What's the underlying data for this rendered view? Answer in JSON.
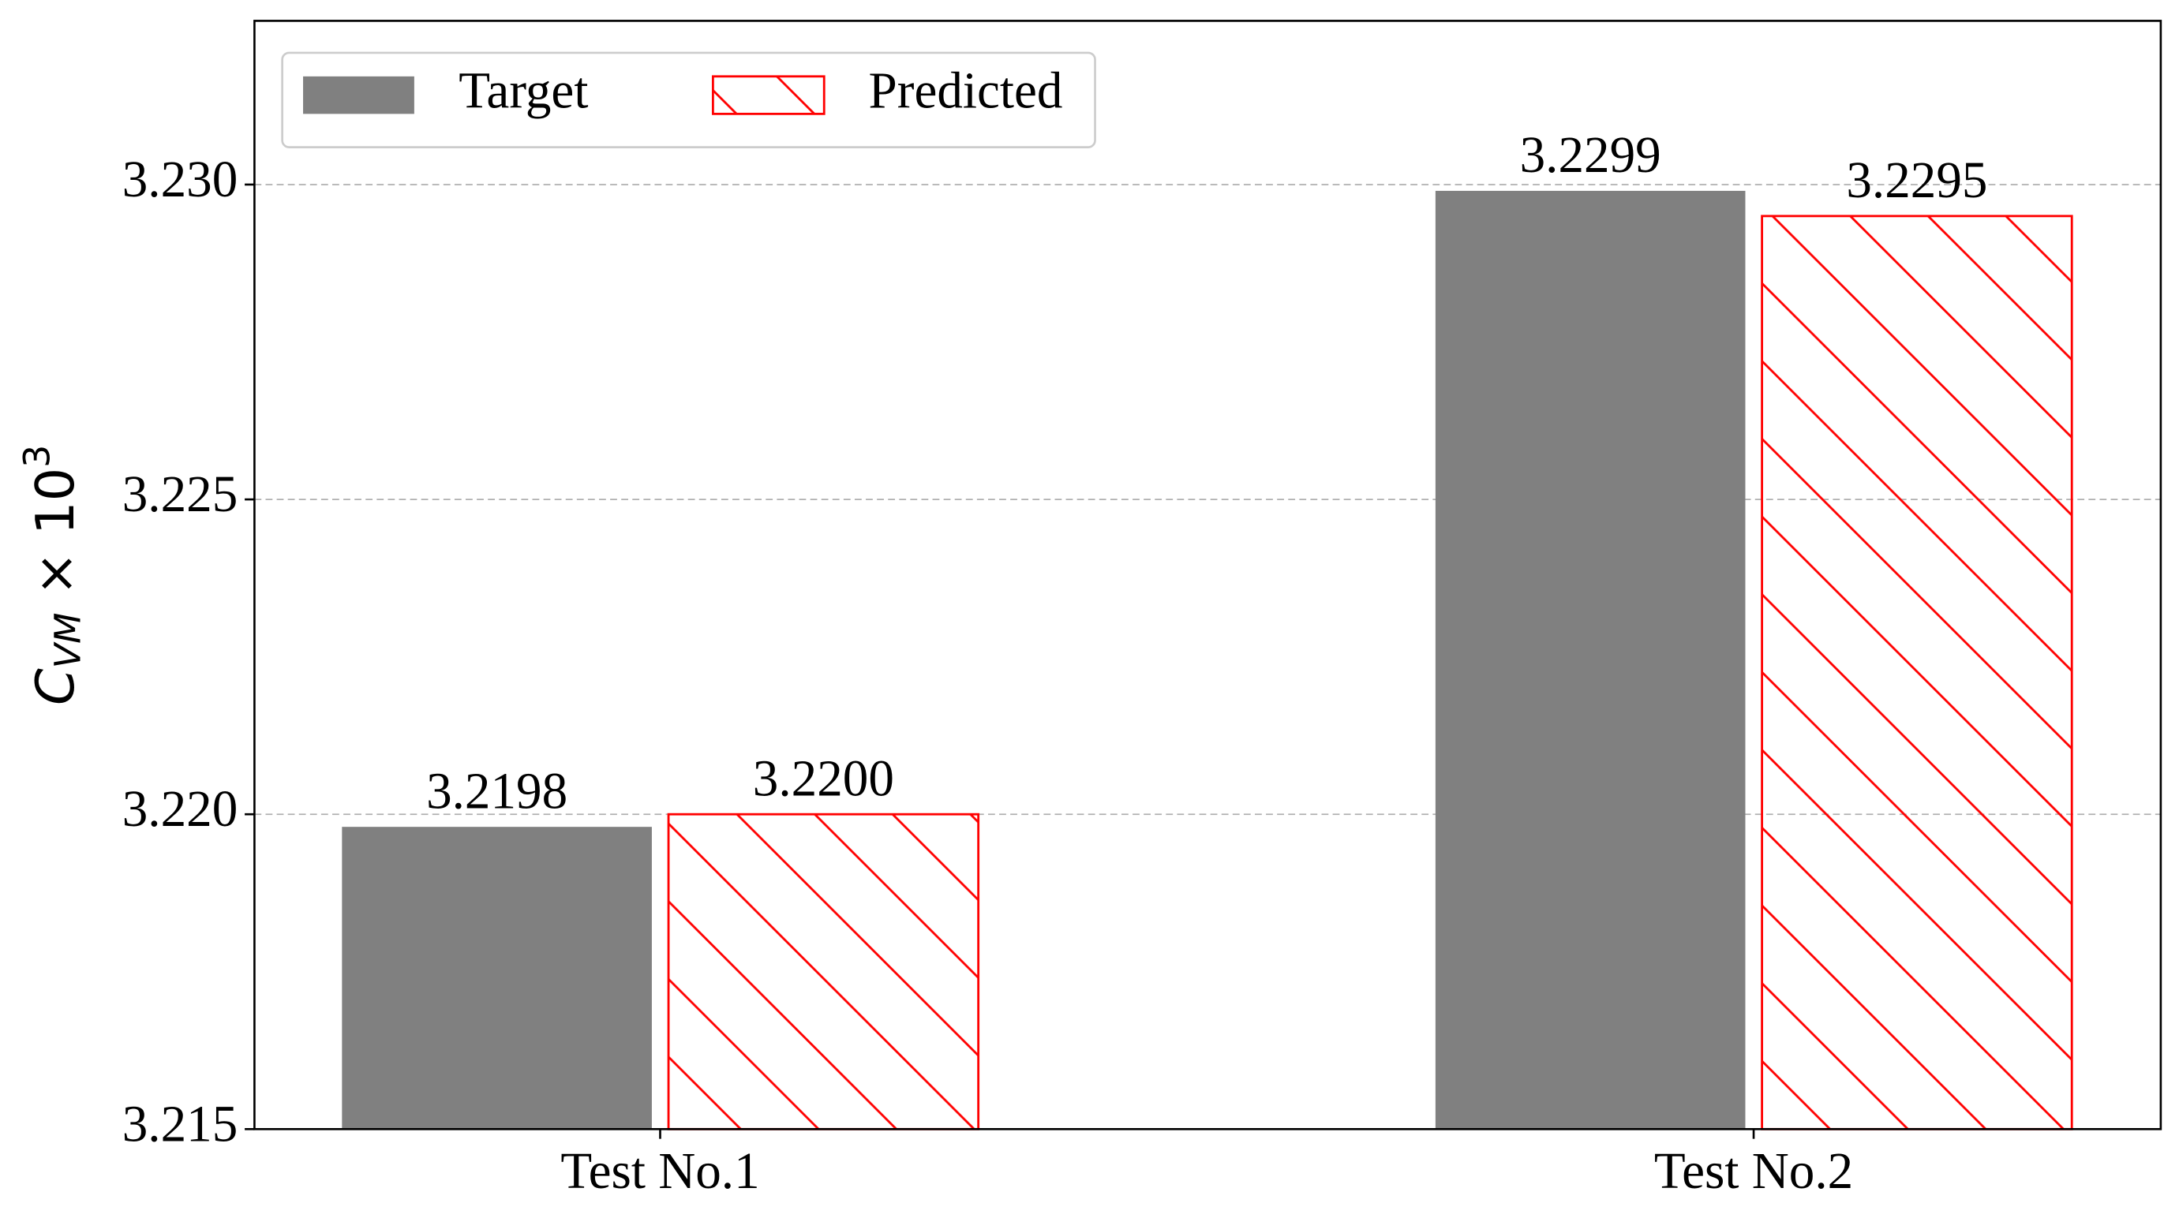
{
  "chart_data": {
    "type": "bar",
    "y_label": {
      "base": "C",
      "subscript": "VM",
      "rest": " × 10",
      "superscript": "3"
    },
    "categories": [
      "Test No.1",
      "Test No.2"
    ],
    "series": [
      {
        "name": "Target",
        "color": "#808080",
        "hatch": false,
        "values": [
          3.2198,
          3.2299
        ],
        "value_labels": [
          "3.2198",
          "3.2299"
        ]
      },
      {
        "name": "Predicted",
        "color": "#ff0000",
        "hatch": true,
        "values": [
          3.22,
          3.2295
        ],
        "value_labels": [
          "3.2200",
          "3.2295"
        ]
      }
    ],
    "ylim": [
      3.215,
      3.2326
    ],
    "yticks": [
      {
        "value": 3.215,
        "label": "3.215"
      },
      {
        "value": 3.22,
        "label": "3.220"
      },
      {
        "value": 3.225,
        "label": "3.225"
      },
      {
        "value": 3.23,
        "label": "3.230"
      }
    ],
    "grid": true,
    "legend": "upper left"
  }
}
